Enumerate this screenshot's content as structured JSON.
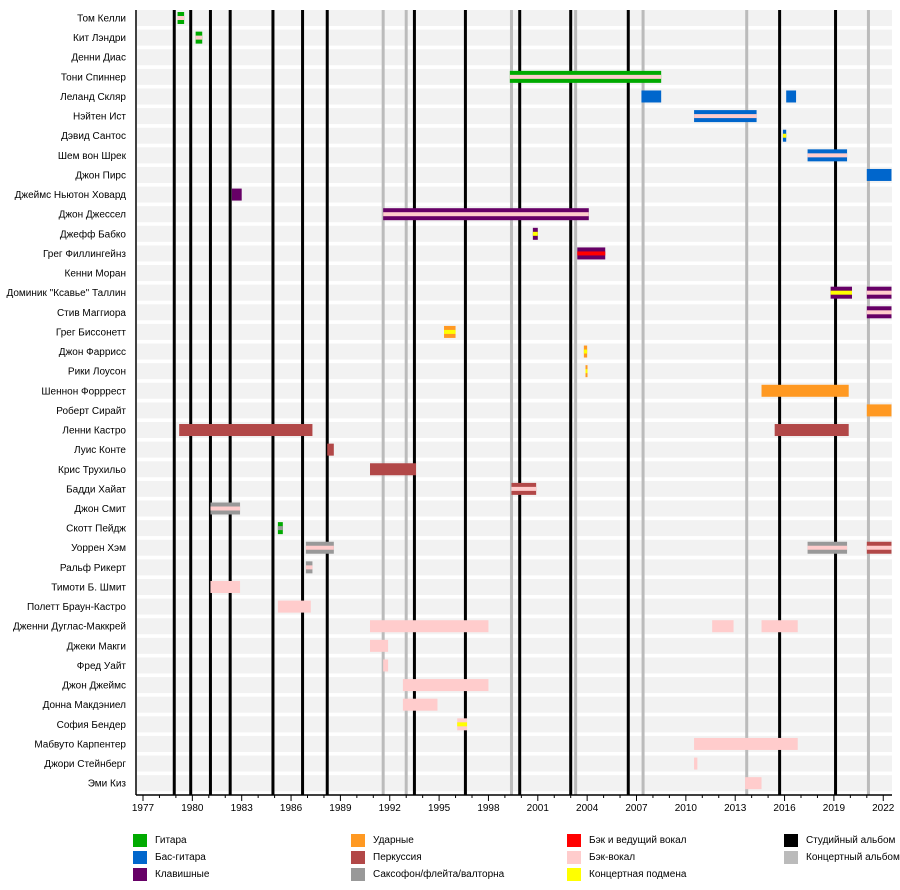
{
  "chart_data": {
    "type": "timeline",
    "title": "",
    "xlabel": "",
    "ylabel": "",
    "xlim": [
      1977,
      2022.5
    ],
    "x_ticks": [
      1977,
      1980,
      1983,
      1986,
      1989,
      1992,
      1995,
      1998,
      2001,
      2004,
      2007,
      2010,
      2013,
      2016,
      2019,
      2022
    ],
    "colors": {
      "guitar": "#00aa00",
      "bass": "#0066cc",
      "keyboards": "#660066",
      "drums": "#ff9922",
      "percussion": "#b24848",
      "horns": "#999999",
      "lead_vocals": "#ff0000",
      "backing_vocals": "#ffcccc",
      "live_sub": "#ffff00",
      "studio_album": "#000000",
      "live_album": "#bbbbbb"
    },
    "legend": [
      {
        "key": "guitar",
        "label": "Гитара"
      },
      {
        "key": "bass",
        "label": "Бас-гитара"
      },
      {
        "key": "keyboards",
        "label": "Клавишные"
      },
      {
        "key": "drums",
        "label": "Ударные"
      },
      {
        "key": "percussion",
        "label": "Перкуссия"
      },
      {
        "key": "horns",
        "label": "Саксофон/флейта/валторна"
      },
      {
        "key": "lead_vocals",
        "label": "Бэк и ведущий вокал"
      },
      {
        "key": "backing_vocals",
        "label": "Бэк-вокал"
      },
      {
        "key": "live_sub",
        "label": "Концертная подмена"
      },
      {
        "key": "studio_album",
        "label": "Студийный альбом"
      },
      {
        "key": "live_album",
        "label": "Концертный альбом"
      }
    ],
    "studio_albums": [
      1978.9,
      1979.9,
      1981.1,
      1982.3,
      1984.9,
      1986.7,
      1988.2,
      1993.5,
      1996.6,
      1999.9,
      2003.0,
      2006.5,
      2015.7,
      2019.1
    ],
    "live_albums": [
      1991.6,
      1993.0,
      1999.4,
      2003.3,
      2007.4,
      2013.7,
      2021.1
    ],
    "members": [
      {
        "name": "Том Келли",
        "bars": [
          {
            "start": 1979.1,
            "end": 1979.5,
            "main": "guitar",
            "stripe": "backing_vocals"
          }
        ]
      },
      {
        "name": "Кит Лэндри",
        "bars": [
          {
            "start": 1980.2,
            "end": 1980.6,
            "main": "guitar",
            "stripe": "backing_vocals"
          }
        ]
      },
      {
        "name": "Денни Диас",
        "bars": []
      },
      {
        "name": "Тони Спиннер",
        "bars": [
          {
            "start": 1999.3,
            "end": 2008.5,
            "main": "guitar",
            "stripe": "backing_vocals"
          }
        ]
      },
      {
        "name": "Леланд Скляр",
        "bars": [
          {
            "start": 2007.3,
            "end": 2008.5,
            "main": "bass"
          },
          {
            "start": 2016.1,
            "end": 2016.7,
            "main": "bass"
          }
        ]
      },
      {
        "name": "Нэйтен Ист",
        "bars": [
          {
            "start": 2010.5,
            "end": 2014.3,
            "main": "bass",
            "stripe": "backing_vocals"
          }
        ]
      },
      {
        "name": "Дэвид Сантос",
        "bars": [
          {
            "start": 2015.9,
            "end": 2016.1,
            "main": "bass",
            "stripe": "live_sub"
          }
        ]
      },
      {
        "name": "Шем вон Шрек",
        "bars": [
          {
            "start": 2017.4,
            "end": 2019.8,
            "main": "bass",
            "stripe": "backing_vocals"
          }
        ]
      },
      {
        "name": "Джон Пирс",
        "bars": [
          {
            "start": 2021.0,
            "end": 2022.5,
            "main": "bass"
          }
        ]
      },
      {
        "name": "Джеймс Ньютон Ховард",
        "bars": [
          {
            "start": 1982.4,
            "end": 1983.0,
            "main": "keyboards"
          }
        ]
      },
      {
        "name": "Джон Джессел",
        "bars": [
          {
            "start": 1991.6,
            "end": 2004.1,
            "main": "keyboards",
            "stripe": "backing_vocals"
          }
        ]
      },
      {
        "name": "Джефф Бабко",
        "bars": [
          {
            "start": 2000.7,
            "end": 2001.0,
            "main": "keyboards",
            "stripe": "live_sub"
          }
        ]
      },
      {
        "name": "Грег Филлингейнз",
        "bars": [
          {
            "start": 2003.4,
            "end": 2005.1,
            "main": "keyboards",
            "stripe": "lead_vocals"
          }
        ]
      },
      {
        "name": "Кенни Моран",
        "bars": []
      },
      {
        "name": "Доминик \"Ксавье\" Таллин",
        "bars": [
          {
            "start": 2018.8,
            "end": 2020.1,
            "main": "keyboards",
            "stripe": "live_sub"
          },
          {
            "start": 2021.0,
            "end": 2022.5,
            "main": "keyboards",
            "stripe": "backing_vocals"
          }
        ]
      },
      {
        "name": "Стив Маггиора",
        "bars": [
          {
            "start": 2021.0,
            "end": 2022.5,
            "main": "keyboards",
            "stripe": "backing_vocals"
          }
        ]
      },
      {
        "name": "Грег Биссонетт",
        "bars": [
          {
            "start": 1995.3,
            "end": 1996.0,
            "main": "drums",
            "stripe": "live_sub"
          }
        ]
      },
      {
        "name": "Джон Фаррисс",
        "bars": [
          {
            "start": 2003.8,
            "end": 2004.0,
            "main": "drums",
            "stripe": "live_sub"
          }
        ]
      },
      {
        "name": "Рики Лоусон",
        "bars": [
          {
            "start": 2003.9,
            "end": 2004.0,
            "main": "drums",
            "stripe": "live_sub"
          }
        ]
      },
      {
        "name": "Шеннон Форррест",
        "bars": [
          {
            "start": 2014.6,
            "end": 2019.9,
            "main": "drums"
          }
        ]
      },
      {
        "name": "Роберт Сирайт",
        "bars": [
          {
            "start": 2021.0,
            "end": 2022.5,
            "main": "drums"
          }
        ]
      },
      {
        "name": "Ленни Кастро",
        "bars": [
          {
            "start": 1979.2,
            "end": 1987.3,
            "main": "percussion"
          },
          {
            "start": 2015.4,
            "end": 2019.9,
            "main": "percussion"
          }
        ]
      },
      {
        "name": "Луис Конте",
        "bars": [
          {
            "start": 1988.2,
            "end": 1988.6,
            "main": "percussion"
          }
        ]
      },
      {
        "name": "Крис Трухильо",
        "bars": [
          {
            "start": 1990.8,
            "end": 1993.6,
            "main": "percussion"
          }
        ]
      },
      {
        "name": "Бадди Хайат",
        "bars": [
          {
            "start": 1999.4,
            "end": 2000.9,
            "main": "percussion",
            "stripe": "backing_vocals"
          }
        ]
      },
      {
        "name": "Джон Смит",
        "bars": [
          {
            "start": 1981.1,
            "end": 1982.9,
            "main": "horns",
            "stripe": "backing_vocals"
          }
        ]
      },
      {
        "name": "Скотт Пейдж",
        "bars": [
          {
            "start": 1985.2,
            "end": 1985.5,
            "main": "guitar",
            "stripe": "horns"
          }
        ]
      },
      {
        "name": "Уоррен Хэм",
        "bars": [
          {
            "start": 1986.9,
            "end": 1988.6,
            "main": "horns",
            "stripe": "backing_vocals"
          },
          {
            "start": 2017.4,
            "end": 2019.8,
            "main": "horns",
            "stripe": "backing_vocals"
          },
          {
            "start": 2021.0,
            "end": 2022.5,
            "main": "percussion",
            "stripe": "backing_vocals"
          }
        ]
      },
      {
        "name": "Ральф Рикерт",
        "bars": [
          {
            "start": 1986.9,
            "end": 1987.3,
            "main": "horns",
            "stripe": "backing_vocals"
          }
        ]
      },
      {
        "name": "Тимоти Б. Шмит",
        "bars": [
          {
            "start": 1981.1,
            "end": 1982.9,
            "main": "backing_vocals"
          }
        ]
      },
      {
        "name": "Полетт Браун-Кастро",
        "bars": [
          {
            "start": 1985.2,
            "end": 1987.2,
            "main": "backing_vocals"
          }
        ]
      },
      {
        "name": "Дженни Дуглас-Маккрей",
        "bars": [
          {
            "start": 1990.8,
            "end": 1998.0,
            "main": "backing_vocals"
          },
          {
            "start": 2011.6,
            "end": 2012.9,
            "main": "backing_vocals"
          },
          {
            "start": 2014.6,
            "end": 2016.8,
            "main": "backing_vocals"
          }
        ]
      },
      {
        "name": "Джеки Макги",
        "bars": [
          {
            "start": 1990.8,
            "end": 1991.9,
            "main": "backing_vocals"
          }
        ]
      },
      {
        "name": "Фред Уайт",
        "bars": [
          {
            "start": 1991.6,
            "end": 1991.9,
            "main": "backing_vocals"
          }
        ]
      },
      {
        "name": "Джон Джеймс",
        "bars": [
          {
            "start": 1992.8,
            "end": 1998.0,
            "main": "backing_vocals"
          }
        ]
      },
      {
        "name": "Донна Макдэниел",
        "bars": [
          {
            "start": 1992.8,
            "end": 1994.9,
            "main": "backing_vocals"
          }
        ]
      },
      {
        "name": "София Бендер",
        "bars": [
          {
            "start": 1996.1,
            "end": 1996.7,
            "main": "backing_vocals",
            "stripe": "live_sub"
          }
        ]
      },
      {
        "name": "Мабвуто Карпентер",
        "bars": [
          {
            "start": 2010.5,
            "end": 2016.8,
            "main": "backing_vocals"
          }
        ]
      },
      {
        "name": "Джори Стейнберг",
        "bars": [
          {
            "start": 2010.5,
            "end": 2010.7,
            "main": "backing_vocals"
          }
        ]
      },
      {
        "name": "Эми Киз",
        "bars": [
          {
            "start": 2013.6,
            "end": 2014.6,
            "main": "backing_vocals"
          }
        ]
      }
    ]
  }
}
